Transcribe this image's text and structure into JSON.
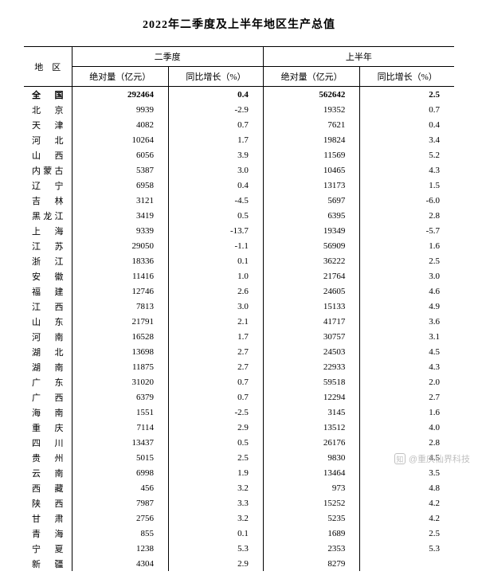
{
  "title": "2022年二季度及上半年地区生产总值",
  "headers": {
    "region": "地　区",
    "q2": "二季度",
    "h1": "上半年",
    "abs": "绝对量（亿元）",
    "yoy": "同比增长（%）"
  },
  "rows": [
    {
      "region": "全　国",
      "q2_abs": "292464",
      "q2_yoy": "0.4",
      "h1_abs": "562642",
      "h1_yoy": "2.5",
      "bold": true
    },
    {
      "region": "北　京",
      "q2_abs": "9939",
      "q2_yoy": "-2.9",
      "h1_abs": "19352",
      "h1_yoy": "0.7"
    },
    {
      "region": "天　津",
      "q2_abs": "4082",
      "q2_yoy": "0.7",
      "h1_abs": "7621",
      "h1_yoy": "0.4"
    },
    {
      "region": "河　北",
      "q2_abs": "10264",
      "q2_yoy": "1.7",
      "h1_abs": "19824",
      "h1_yoy": "3.4"
    },
    {
      "region": "山　西",
      "q2_abs": "6056",
      "q2_yoy": "3.9",
      "h1_abs": "11569",
      "h1_yoy": "5.2"
    },
    {
      "region": "内蒙古",
      "q2_abs": "5387",
      "q2_yoy": "3.0",
      "h1_abs": "10465",
      "h1_yoy": "4.3"
    },
    {
      "region": "辽　宁",
      "q2_abs": "6958",
      "q2_yoy": "0.4",
      "h1_abs": "13173",
      "h1_yoy": "1.5"
    },
    {
      "region": "吉　林",
      "q2_abs": "3121",
      "q2_yoy": "-4.5",
      "h1_abs": "5697",
      "h1_yoy": "-6.0"
    },
    {
      "region": "黑龙江",
      "q2_abs": "3419",
      "q2_yoy": "0.5",
      "h1_abs": "6395",
      "h1_yoy": "2.8"
    },
    {
      "region": "上　海",
      "q2_abs": "9339",
      "q2_yoy": "-13.7",
      "h1_abs": "19349",
      "h1_yoy": "-5.7"
    },
    {
      "region": "江　苏",
      "q2_abs": "29050",
      "q2_yoy": "-1.1",
      "h1_abs": "56909",
      "h1_yoy": "1.6"
    },
    {
      "region": "浙　江",
      "q2_abs": "18336",
      "q2_yoy": "0.1",
      "h1_abs": "36222",
      "h1_yoy": "2.5"
    },
    {
      "region": "安　徽",
      "q2_abs": "11416",
      "q2_yoy": "1.0",
      "h1_abs": "21764",
      "h1_yoy": "3.0"
    },
    {
      "region": "福　建",
      "q2_abs": "12746",
      "q2_yoy": "2.6",
      "h1_abs": "24605",
      "h1_yoy": "4.6"
    },
    {
      "region": "江　西",
      "q2_abs": "7813",
      "q2_yoy": "3.0",
      "h1_abs": "15133",
      "h1_yoy": "4.9"
    },
    {
      "region": "山　东",
      "q2_abs": "21791",
      "q2_yoy": "2.1",
      "h1_abs": "41717",
      "h1_yoy": "3.6"
    },
    {
      "region": "河　南",
      "q2_abs": "16528",
      "q2_yoy": "1.7",
      "h1_abs": "30757",
      "h1_yoy": "3.1"
    },
    {
      "region": "湖　北",
      "q2_abs": "13698",
      "q2_yoy": "2.7",
      "h1_abs": "24503",
      "h1_yoy": "4.5"
    },
    {
      "region": "湖　南",
      "q2_abs": "11875",
      "q2_yoy": "2.7",
      "h1_abs": "22933",
      "h1_yoy": "4.3"
    },
    {
      "region": "广　东",
      "q2_abs": "31020",
      "q2_yoy": "0.7",
      "h1_abs": "59518",
      "h1_yoy": "2.0"
    },
    {
      "region": "广　西",
      "q2_abs": "6379",
      "q2_yoy": "0.7",
      "h1_abs": "12294",
      "h1_yoy": "2.7"
    },
    {
      "region": "海　南",
      "q2_abs": "1551",
      "q2_yoy": "-2.5",
      "h1_abs": "3145",
      "h1_yoy": "1.6"
    },
    {
      "region": "重　庆",
      "q2_abs": "7114",
      "q2_yoy": "2.9",
      "h1_abs": "13512",
      "h1_yoy": "4.0"
    },
    {
      "region": "四　川",
      "q2_abs": "13437",
      "q2_yoy": "0.5",
      "h1_abs": "26176",
      "h1_yoy": "2.8"
    },
    {
      "region": "贵　州",
      "q2_abs": "5015",
      "q2_yoy": "2.5",
      "h1_abs": "9830",
      "h1_yoy": "4.5"
    },
    {
      "region": "云　南",
      "q2_abs": "6998",
      "q2_yoy": "1.9",
      "h1_abs": "13464",
      "h1_yoy": "3.5"
    },
    {
      "region": "西　藏",
      "q2_abs": "456",
      "q2_yoy": "3.2",
      "h1_abs": "973",
      "h1_yoy": "4.8"
    },
    {
      "region": "陕　西",
      "q2_abs": "7987",
      "q2_yoy": "3.3",
      "h1_abs": "15252",
      "h1_yoy": "4.2"
    },
    {
      "region": "甘　肃",
      "q2_abs": "2756",
      "q2_yoy": "3.2",
      "h1_abs": "5235",
      "h1_yoy": "4.2"
    },
    {
      "region": "青　海",
      "q2_abs": "855",
      "q2_yoy": "0.1",
      "h1_abs": "1689",
      "h1_yoy": "2.5"
    },
    {
      "region": "宁　夏",
      "q2_abs": "1238",
      "q2_yoy": "5.3",
      "h1_abs": "2353",
      "h1_yoy": "5.3"
    },
    {
      "region": "新　疆",
      "q2_abs": "4304",
      "q2_yoy": "2.9",
      "h1_abs": "8279",
      "h1_yoy": ""
    }
  ],
  "watermark": {
    "logo": "知",
    "text": "@重庆仙界科技"
  }
}
